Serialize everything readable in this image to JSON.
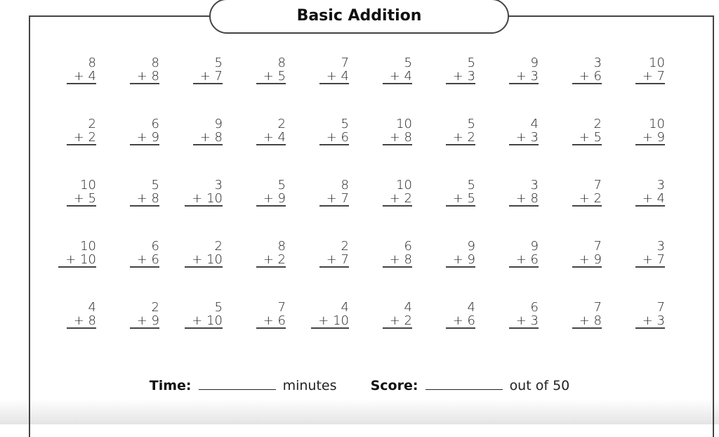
{
  "title": "Basic Addition",
  "problems": [
    [
      [
        8,
        4
      ],
      [
        8,
        8
      ],
      [
        5,
        7
      ],
      [
        8,
        5
      ],
      [
        7,
        4
      ],
      [
        5,
        4
      ],
      [
        5,
        3
      ],
      [
        9,
        3
      ],
      [
        3,
        6
      ],
      [
        10,
        7
      ]
    ],
    [
      [
        2,
        2
      ],
      [
        6,
        9
      ],
      [
        9,
        8
      ],
      [
        2,
        4
      ],
      [
        5,
        6
      ],
      [
        10,
        8
      ],
      [
        5,
        2
      ],
      [
        4,
        3
      ],
      [
        2,
        5
      ],
      [
        10,
        9
      ]
    ],
    [
      [
        10,
        5
      ],
      [
        5,
        8
      ],
      [
        3,
        10
      ],
      [
        5,
        9
      ],
      [
        8,
        7
      ],
      [
        10,
        2
      ],
      [
        5,
        5
      ],
      [
        3,
        8
      ],
      [
        7,
        2
      ],
      [
        3,
        4
      ]
    ],
    [
      [
        10,
        10
      ],
      [
        6,
        6
      ],
      [
        2,
        10
      ],
      [
        8,
        2
      ],
      [
        2,
        7
      ],
      [
        6,
        8
      ],
      [
        9,
        9
      ],
      [
        9,
        6
      ],
      [
        7,
        9
      ],
      [
        3,
        7
      ]
    ],
    [
      [
        4,
        8
      ],
      [
        2,
        9
      ],
      [
        5,
        10
      ],
      [
        7,
        6
      ],
      [
        4,
        10
      ],
      [
        4,
        2
      ],
      [
        4,
        6
      ],
      [
        6,
        3
      ],
      [
        7,
        8
      ],
      [
        7,
        3
      ]
    ]
  ],
  "footer": {
    "time_label": "Time:",
    "time_unit": "minutes",
    "score_label": "Score:",
    "score_suffix": "out of 50"
  }
}
